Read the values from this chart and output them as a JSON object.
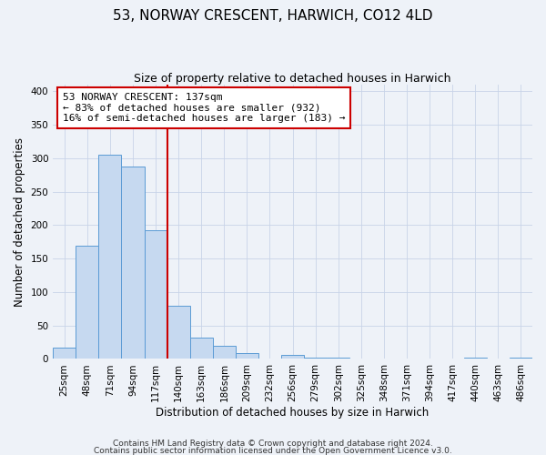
{
  "title": "53, NORWAY CRESCENT, HARWICH, CO12 4LD",
  "subtitle": "Size of property relative to detached houses in Harwich",
  "xlabel": "Distribution of detached houses by size in Harwich",
  "ylabel": "Number of detached properties",
  "bin_labels": [
    "25sqm",
    "48sqm",
    "71sqm",
    "94sqm",
    "117sqm",
    "140sqm",
    "163sqm",
    "186sqm",
    "209sqm",
    "232sqm",
    "256sqm",
    "279sqm",
    "302sqm",
    "325sqm",
    "348sqm",
    "371sqm",
    "394sqm",
    "417sqm",
    "440sqm",
    "463sqm",
    "486sqm"
  ],
  "bar_heights": [
    17,
    169,
    305,
    287,
    192,
    79,
    32,
    20,
    9,
    0,
    6,
    2,
    2,
    0,
    0,
    0,
    0,
    0,
    2,
    0,
    2
  ],
  "bar_color": "#c6d9f0",
  "bar_edge_color": "#5b9bd5",
  "vline_color": "#cc0000",
  "annotation_text_line1": "53 NORWAY CRESCENT: 137sqm",
  "annotation_text_line2": "← 83% of detached houses are smaller (932)",
  "annotation_text_line3": "16% of semi-detached houses are larger (183) →",
  "annotation_box_color": "#ffffff",
  "annotation_box_edge": "#cc0000",
  "ylim": [
    0,
    410
  ],
  "yticks": [
    0,
    50,
    100,
    150,
    200,
    250,
    300,
    350,
    400
  ],
  "footer_line1": "Contains HM Land Registry data © Crown copyright and database right 2024.",
  "footer_line2": "Contains public sector information licensed under the Open Government Licence v3.0.",
  "background_color": "#eef2f8",
  "plot_bg_color": "#eef2f8",
  "title_fontsize": 11,
  "subtitle_fontsize": 9,
  "axis_label_fontsize": 8.5,
  "tick_fontsize": 7.5,
  "annotation_fontsize": 8,
  "footer_fontsize": 6.5
}
